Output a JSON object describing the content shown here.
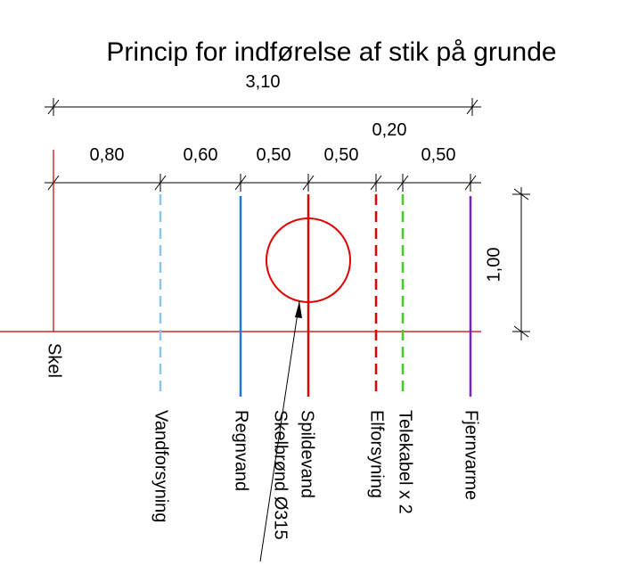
{
  "title": "Princip for indførelse af stik på grunde",
  "dimensions": {
    "total": "3,10",
    "segments": [
      "0,80",
      "0,60",
      "0,50",
      "0,50",
      "0,20",
      "0,50"
    ],
    "depth": "1,00"
  },
  "lines": [
    "Skel",
    "Vandforsyning",
    "Regnvand",
    "Spildevand",
    "Elforsyning",
    "Telekabel x 2",
    "Fjernvarme"
  ],
  "well_label": "Skelbrønd Ø315"
}
